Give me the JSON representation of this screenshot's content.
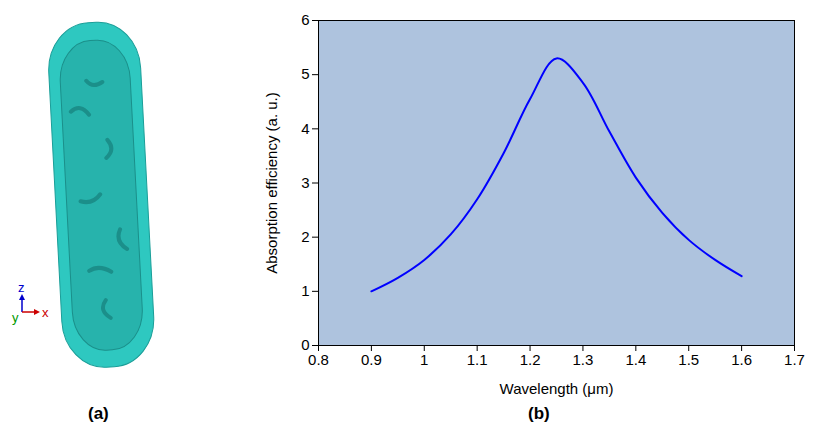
{
  "panel_a": {
    "panel_label": "(a)",
    "axis_labels": {
      "z": "z",
      "y": "y",
      "x": "x"
    }
  },
  "chart_data": {
    "type": "line",
    "panel_label": "(b)",
    "x_label": "Wavelength (μm)",
    "y_label": "Absorption efficiency (a. u.)",
    "x": [
      0.9,
      0.95,
      1.0,
      1.05,
      1.1,
      1.15,
      1.2,
      1.25,
      1.3,
      1.35,
      1.4,
      1.45,
      1.5,
      1.55,
      1.6
    ],
    "values": [
      1.0,
      1.25,
      1.58,
      2.05,
      2.7,
      3.55,
      4.55,
      5.3,
      4.85,
      3.95,
      3.1,
      2.45,
      1.95,
      1.58,
      1.28
    ],
    "color": "#0000ff",
    "xlim": [
      0.8,
      1.7
    ],
    "xticks": [
      0.8,
      0.9,
      1,
      1.1,
      1.2,
      1.3,
      1.4,
      1.5,
      1.6,
      1.7
    ],
    "ylim": [
      0,
      6
    ],
    "yticks": [
      0,
      1,
      2,
      3,
      4,
      5,
      6
    ],
    "grid": false
  }
}
